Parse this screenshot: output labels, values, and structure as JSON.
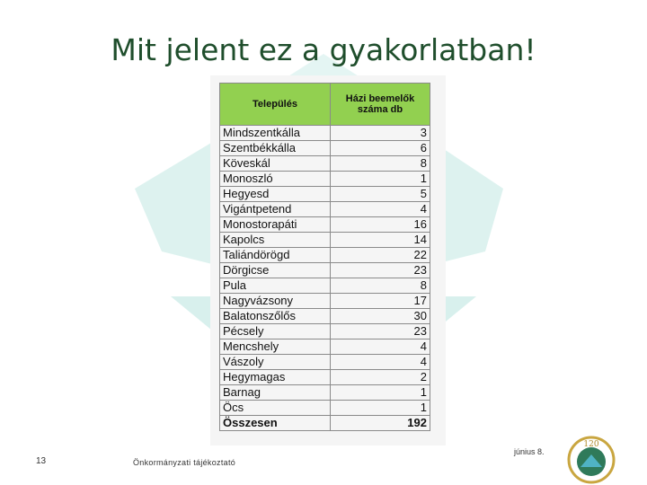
{
  "slide": {
    "title": "Mit jelent ez a gyakorlatban!",
    "number": "13",
    "footer": "Önkormányzati tájékoztató",
    "date": "június 8.",
    "logo_text": "120"
  },
  "table": {
    "headers": {
      "name": "Település",
      "count": "Házi beemelők száma db"
    },
    "rows": [
      {
        "name": "Mindszentkálla",
        "count": "3"
      },
      {
        "name": "Szentbékkálla",
        "count": "6"
      },
      {
        "name": "Köveskál",
        "count": "8"
      },
      {
        "name": "Monoszló",
        "count": "1"
      },
      {
        "name": "Hegyesd",
        "count": "5"
      },
      {
        "name": "Vigántpetend",
        "count": "4"
      },
      {
        "name": "Monostorapáti",
        "count": "16"
      },
      {
        "name": "Kapolcs",
        "count": "14"
      },
      {
        "name": "Taliándörögd",
        "count": "22"
      },
      {
        "name": "Dörgicse",
        "count": "23"
      },
      {
        "name": "Pula",
        "count": "8"
      },
      {
        "name": "Nagyvázsony",
        "count": "17"
      },
      {
        "name": "Balatonszőlős",
        "count": "30"
      },
      {
        "name": "Pécsely",
        "count": "23"
      },
      {
        "name": "Mencshely",
        "count": "4"
      },
      {
        "name": "Vászoly",
        "count": "4"
      },
      {
        "name": "Hegymagas",
        "count": "2"
      },
      {
        "name": "Barnag",
        "count": "1"
      },
      {
        "name": "Öcs",
        "count": "1"
      }
    ],
    "total": {
      "name": "Összesen",
      "count": "192"
    }
  },
  "colors": {
    "header_fill": "#92d050",
    "title": "#1f4e2c",
    "watermark": "#d6f0ee"
  }
}
